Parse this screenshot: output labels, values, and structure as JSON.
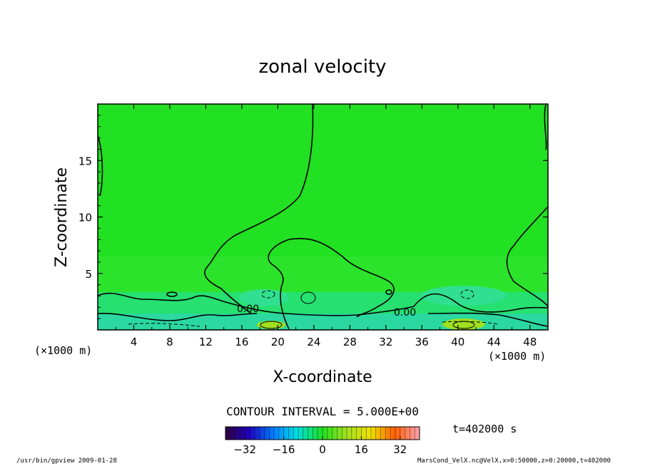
{
  "chart_data": {
    "type": "heatmap",
    "title": "zonal velocity",
    "xlabel": "X-coordinate",
    "ylabel": "Z-coordinate",
    "x_unit_label": "(×1000 m)",
    "x_unit_label_right": "(×1000 m)",
    "xlim": [
      0,
      50
    ],
    "ylim": [
      0,
      20
    ],
    "x_ticks": [
      4,
      8,
      12,
      16,
      20,
      24,
      28,
      32,
      36,
      40,
      44,
      48
    ],
    "y_ticks": [
      5,
      10,
      15
    ],
    "contour_interval_text": "CONTOUR INTERVAL = 5.000E+00",
    "contour_labels": [
      "0.00",
      "0.00"
    ],
    "colorbar": {
      "range": [
        -40,
        40
      ],
      "ticks": [
        -32,
        -16,
        0,
        16,
        32
      ]
    },
    "time_label": "t=402000 s",
    "grid": false
  },
  "footer": {
    "left": "/usr/bin/gpview  2009-01-28",
    "right": "MarsCond_VelX.nc@VelX,x=0:50000,z=0:20000,t=402000"
  }
}
